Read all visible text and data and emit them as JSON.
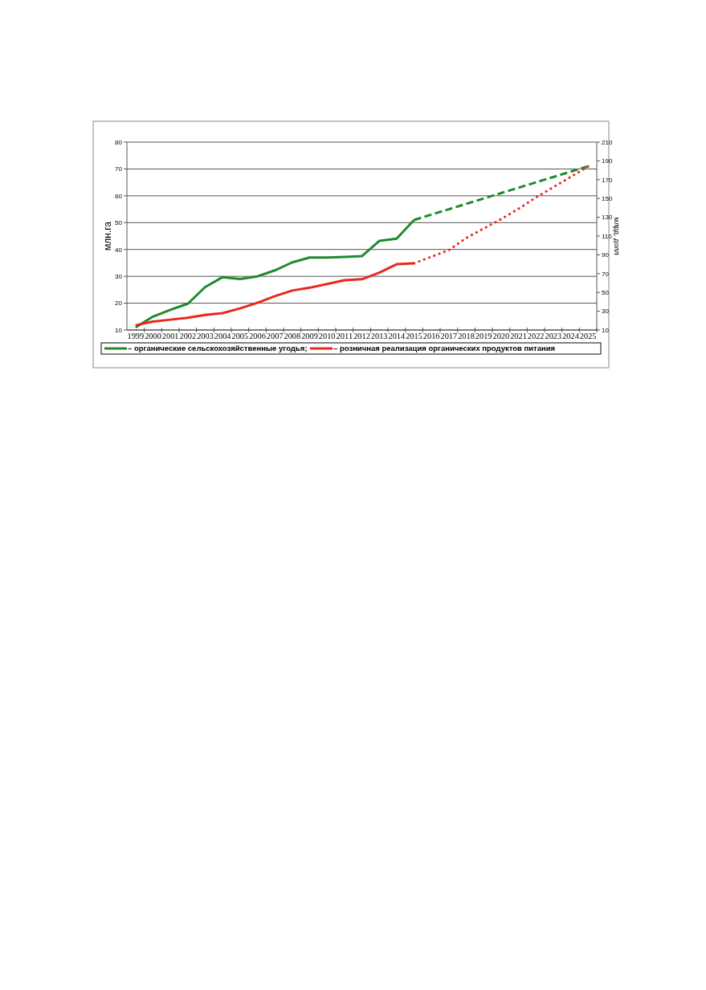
{
  "chart_data": {
    "type": "line",
    "categories": [
      "1999",
      "2000",
      "2001",
      "2002",
      "2003",
      "2004",
      "2005",
      "2006",
      "2007",
      "2008",
      "2009",
      "2010",
      "2011",
      "2012",
      "2013",
      "2014",
      "2015",
      "2016",
      "2017",
      "2018",
      "2019",
      "2020",
      "2021",
      "2022",
      "2023",
      "2024",
      "2025"
    ],
    "series": [
      {
        "name": "– органические сельскохозяйственные угодья;",
        "color": "#1e8a2e",
        "line_style": "solid",
        "values": [
          11,
          15,
          17.5,
          19.8,
          26,
          29.7,
          29,
          30,
          32.2,
          35.2,
          37,
          37,
          37.2,
          37.5,
          43.2,
          44,
          51,
          null,
          null,
          null,
          null,
          null,
          null,
          null,
          null,
          null,
          null
        ]
      },
      {
        "color": "#1e8a2e",
        "line_style": "dashed",
        "values": [
          null,
          null,
          null,
          null,
          null,
          null,
          null,
          null,
          null,
          null,
          null,
          null,
          null,
          null,
          null,
          null,
          51,
          53,
          55,
          57,
          59,
          61,
          63,
          65,
          67,
          69,
          71
        ]
      },
      {
        "name": "– розничная реализация органических продуктов питания",
        "color": "#e8281e",
        "line_style": "solid",
        "axis": "y2",
        "values": [
          15,
          19,
          21,
          23,
          26,
          28,
          33,
          39,
          46,
          52,
          55,
          59,
          63,
          64,
          71,
          80,
          81,
          null,
          null,
          null,
          null,
          null,
          null,
          null,
          null,
          null,
          null
        ]
      },
      {
        "color": "#e8281e",
        "line_style": "dotted",
        "axis": "y2",
        "values": [
          null,
          null,
          null,
          null,
          null,
          null,
          null,
          null,
          null,
          null,
          null,
          null,
          null,
          null,
          null,
          null,
          81,
          88,
          95,
          108,
          118,
          128,
          139,
          151,
          162,
          173,
          184
        ]
      }
    ],
    "ylabel": "млн.га",
    "y2label": "млрд. долл",
    "ylim": [
      10,
      80
    ],
    "yticks": [
      10,
      20,
      30,
      40,
      50,
      60,
      70,
      80
    ],
    "y2lim": [
      10,
      210
    ],
    "y2ticks": [
      10,
      30,
      50,
      70,
      90,
      110,
      130,
      150,
      170,
      190,
      210
    ],
    "grid": "y",
    "legend": "bottom"
  }
}
